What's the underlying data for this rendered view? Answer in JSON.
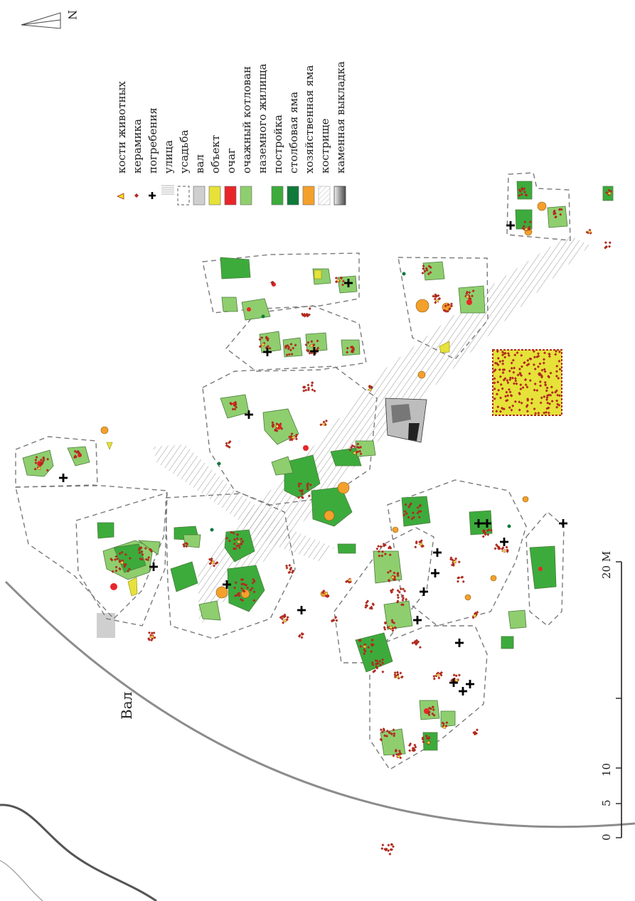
{
  "north_arrow": {
    "label": "N"
  },
  "legend": {
    "items": [
      {
        "key": "bones",
        "label": "кости животных",
        "icon": "triangle-marker-icon",
        "color": "#e8e020"
      },
      {
        "key": "ceramics",
        "label": "керамика",
        "icon": "diamond-marker-icon",
        "color": "#b02a1e"
      },
      {
        "key": "burials",
        "label": "погребения",
        "icon": "cross-icon",
        "color": "#000000"
      },
      {
        "key": "street",
        "label": "улица",
        "icon": "hatch-icon",
        "color": "#9a9a9a"
      },
      {
        "key": "estate",
        "label": "усадьба",
        "icon": "dashed-box-icon",
        "color": "#7a7a7a"
      },
      {
        "key": "rampart",
        "label": "вал",
        "icon": "swatch-icon",
        "color": "#cfcfcf"
      },
      {
        "key": "object",
        "label": "объект",
        "icon": "swatch-icon",
        "color": "#e6e23a"
      },
      {
        "key": "hearth",
        "label": "очаг",
        "icon": "swatch-icon",
        "color": "#e8262a"
      },
      {
        "key": "pit_house",
        "label": "очажный котлован",
        "icon": "swatch-icon",
        "color": "#8fce6e"
      },
      {
        "key": "pit_house2",
        "label": "наземного жилища",
        "icon": "none",
        "color": ""
      },
      {
        "key": "building",
        "label": "постройка",
        "icon": "swatch-icon",
        "color": "#3cab3c"
      },
      {
        "key": "post_hole",
        "label": "столбовая яма",
        "icon": "swatch-icon",
        "color": "#0f7a3a"
      },
      {
        "key": "utility_pit",
        "label": "хозяйственная яма",
        "icon": "swatch-icon",
        "color": "#f4a02c"
      },
      {
        "key": "fireplace",
        "label": "кострище",
        "icon": "hatch-swatch-icon",
        "color": "#bbbbbb"
      },
      {
        "key": "stone",
        "label": "каменная выкладка",
        "icon": "gradient-swatch-icon",
        "color": "#888888"
      }
    ]
  },
  "labels": {
    "rampart": "Вал"
  },
  "scale_bar": {
    "ticks": [
      "0",
      "5",
      "10",
      "20 М"
    ],
    "values_m": [
      0,
      5,
      10,
      20
    ]
  },
  "colors": {
    "pit_house": "#8fce6e",
    "building": "#3cab3c",
    "post_hole": "#0f7a3a",
    "utility_pit": "#f4a02c",
    "hearth": "#e8262a",
    "object": "#e6e23a",
    "ceramics": "#b02a1e",
    "estate": "#7a7a7a",
    "street": "#9a9a9a"
  }
}
